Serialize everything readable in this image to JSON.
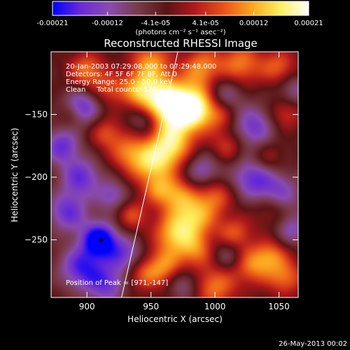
{
  "chart_data": {
    "type": "heatmap",
    "title": "Reconstructed RHESSI Image",
    "xlabel": "Heliocentric X (arcsec)",
    "ylabel": "Heliocentric Y (arcsec)",
    "xlim": [
      872,
      1065
    ],
    "ylim": [
      -296,
      -100
    ],
    "xticks": [
      900,
      950,
      1000,
      1050
    ],
    "yticks": [
      -150,
      -200,
      -250
    ],
    "info_lines": [
      "20-Jan-2003 07:29:08.000 to 07:29:48.000",
      "Detectors: 4F 5F 6F 7F 8F, Att 0",
      "Energy Range: 25.0 - 50.0 keV",
      "Clean     Total counts: 570."
    ],
    "peak_label": "Position of Peak = [971,-147]",
    "peak_position": [
      971,
      -147
    ],
    "marked_point": [
      911,
      -250
    ],
    "limb_line": [
      [
        927,
        -296
      ],
      [
        971,
        -100
      ]
    ],
    "colorbar": {
      "ticks": [
        "-0.00021",
        "-0.00012",
        "-4.1e-05",
        "4.1e-05",
        "0.00012",
        "0.00021"
      ],
      "tick_values": [
        -0.00021,
        -0.00012,
        -4.1e-05,
        4.1e-05,
        0.00012,
        0.00021
      ],
      "range": [
        -0.00021,
        0.00021
      ],
      "unit_label": "(photons cm⁻² s⁻¹ asec⁻²)",
      "colors": [
        "#0000ff",
        "#6a2bd6",
        "#8a4bb0",
        "#7a3a4a",
        "#5a1414",
        "#b0191b",
        "#e8521a",
        "#fca51e",
        "#ffef60",
        "#ffffff"
      ]
    },
    "blobs": [
      [
        971,
        -147,
        0.00021,
        14
      ],
      [
        988,
        -142,
        0.00016,
        13
      ],
      [
        955,
        -135,
        0.00013,
        12
      ],
      [
        940,
        -130,
        0.00011,
        10
      ],
      [
        965,
        -175,
        0.00016,
        12
      ],
      [
        950,
        -190,
        0.00015,
        12
      ],
      [
        932,
        -180,
        0.0001,
        10
      ],
      [
        915,
        -165,
        9e-05,
        9
      ],
      [
        950,
        -108,
        0.00013,
        11
      ],
      [
        990,
        -112,
        0.00012,
        11
      ],
      [
        1020,
        -110,
        0.00012,
        12
      ],
      [
        1050,
        -112,
        0.0001,
        10
      ],
      [
        900,
        -115,
        0.00012,
        10
      ],
      [
        918,
        -130,
        8e-05,
        9
      ],
      [
        888,
        -150,
        7e-05,
        8
      ],
      [
        970,
        -215,
        0.00013,
        11
      ],
      [
        985,
        -232,
        0.00014,
        11
      ],
      [
        968,
        -245,
        0.00015,
        11
      ],
      [
        985,
        -258,
        0.00011,
        10
      ],
      [
        960,
        -272,
        0.00013,
        11
      ],
      [
        1000,
        -215,
        0.0001,
        10
      ],
      [
        1015,
        -245,
        0.0001,
        10
      ],
      [
        1030,
        -270,
        0.00012,
        11
      ],
      [
        1000,
        -287,
        0.00012,
        12
      ],
      [
        1045,
        -262,
        9e-05,
        9
      ],
      [
        1055,
        -280,
        0.00011,
        10
      ],
      [
        942,
        -278,
        8e-05,
        9
      ],
      [
        935,
        -230,
        9e-05,
        9
      ],
      [
        955,
        -210,
        7e-05,
        8
      ],
      [
        1010,
        -175,
        8e-05,
        9
      ],
      [
        1040,
        -185,
        7e-05,
        9
      ],
      [
        1005,
        -150,
        7e-05,
        9
      ],
      [
        1055,
        -150,
        8e-05,
        9
      ],
      [
        1045,
        -225,
        9e-05,
        10
      ],
      [
        1005,
        -135,
        -0.00012,
        11
      ],
      [
        1030,
        -160,
        -0.00012,
        12
      ],
      [
        1030,
        -200,
        -0.00013,
        12
      ],
      [
        1050,
        -215,
        -0.00012,
        12
      ],
      [
        895,
        -145,
        -0.00015,
        10
      ],
      [
        880,
        -175,
        -0.00013,
        10
      ],
      [
        895,
        -200,
        -0.00013,
        11
      ],
      [
        885,
        -228,
        -0.00013,
        11
      ],
      [
        910,
        -250,
        -0.00021,
        10
      ],
      [
        895,
        -272,
        -0.00014,
        12
      ],
      [
        915,
        -285,
        -0.00012,
        11
      ],
      [
        930,
        -262,
        -0.00011,
        10
      ],
      [
        920,
        -215,
        -0.0001,
        9
      ],
      [
        945,
        -155,
        -8e-05,
        8
      ],
      [
        990,
        -195,
        -0.0001,
        10
      ],
      [
        1010,
        -262,
        -8e-05,
        9
      ],
      [
        975,
        -285,
        -9e-05,
        9
      ],
      [
        1060,
        -242,
        -9e-05,
        9
      ],
      [
        1062,
        -130,
        -8e-05,
        9
      ]
    ]
  },
  "footer": {
    "timestamp": "26-May-2013 00:02"
  }
}
